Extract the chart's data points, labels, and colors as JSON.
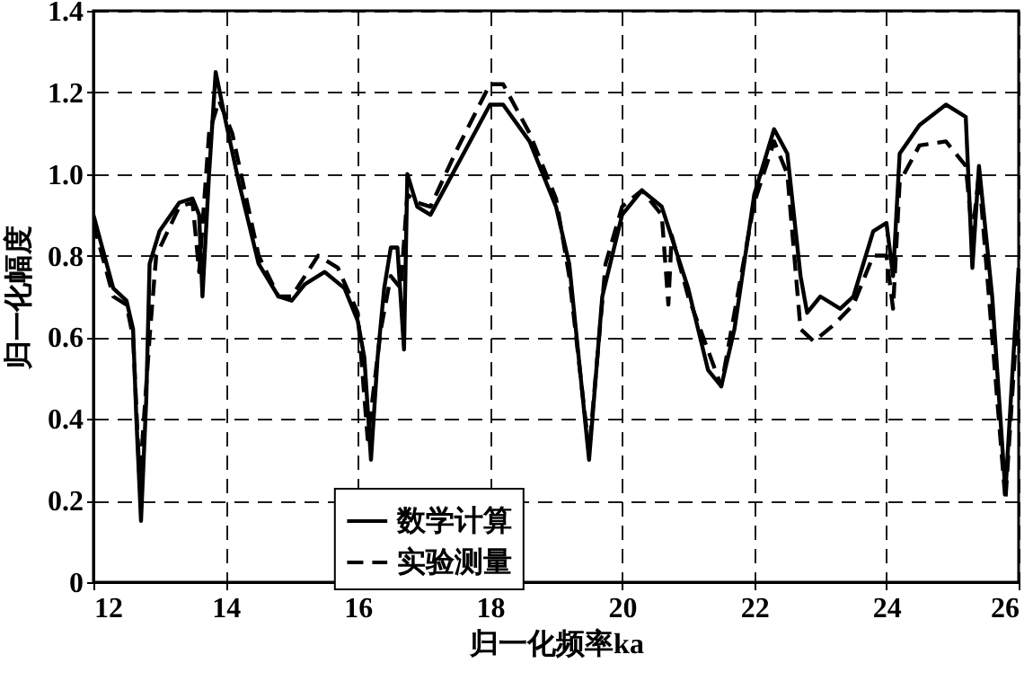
{
  "chart_data": {
    "type": "line",
    "xlabel": "归一化频率ka",
    "ylabel": "归一化幅度",
    "xlim": [
      12,
      26
    ],
    "xticks": [
      12,
      14,
      16,
      18,
      20,
      22,
      24,
      26
    ],
    "ylim": [
      0,
      1.4
    ],
    "yticks": [
      0,
      0.2,
      0.4,
      0.6,
      0.8,
      {
        "value": 1,
        "label": "1.0"
      },
      1.2,
      1.4
    ],
    "grid": true,
    "legend": "bottom",
    "marker": "none",
    "series": [
      {
        "name": "数学计算",
        "color": "#000000",
        "line_style": "solid",
        "x": [
          12.0,
          12.3,
          12.5,
          12.6,
          12.65,
          12.72,
          12.8,
          12.85,
          13.0,
          13.3,
          13.5,
          13.6,
          13.65,
          13.75,
          13.85,
          14.0,
          14.2,
          14.5,
          14.8,
          15.0,
          15.2,
          15.5,
          15.8,
          16.0,
          16.1,
          16.2,
          16.3,
          16.4,
          16.5,
          16.6,
          16.7,
          16.75,
          16.9,
          17.1,
          17.5,
          18.0,
          18.2,
          18.6,
          19.0,
          19.2,
          19.5,
          19.7,
          20.0,
          20.3,
          20.6,
          21.0,
          21.3,
          21.5,
          21.7,
          22.0,
          22.3,
          22.5,
          22.7,
          22.8,
          23.0,
          23.3,
          23.5,
          23.8,
          24.0,
          24.1,
          24.2,
          24.5,
          24.9,
          25.2,
          25.3,
          25.4,
          25.6,
          25.8,
          26.0
        ],
        "values": [
          0.9,
          0.72,
          0.69,
          0.62,
          0.4,
          0.15,
          0.45,
          0.78,
          0.86,
          0.93,
          0.94,
          0.9,
          0.7,
          1.0,
          1.25,
          1.13,
          0.98,
          0.78,
          0.7,
          0.69,
          0.73,
          0.76,
          0.72,
          0.64,
          0.55,
          0.3,
          0.55,
          0.72,
          0.82,
          0.82,
          0.57,
          1.0,
          0.92,
          0.9,
          1.02,
          1.17,
          1.17,
          1.08,
          0.92,
          0.78,
          0.3,
          0.7,
          0.9,
          0.96,
          0.92,
          0.72,
          0.52,
          0.48,
          0.62,
          0.95,
          1.11,
          1.05,
          0.75,
          0.66,
          0.7,
          0.67,
          0.7,
          0.86,
          0.88,
          0.75,
          1.05,
          1.12,
          1.17,
          1.14,
          0.77,
          1.02,
          0.7,
          0.22,
          0.77
        ]
      },
      {
        "name": "实验测量",
        "color": "#000000",
        "line_style": "dashed",
        "x": [
          12.0,
          12.3,
          12.5,
          12.6,
          12.7,
          12.85,
          12.95,
          13.3,
          13.5,
          13.6,
          13.75,
          13.9,
          14.1,
          14.5,
          14.8,
          15.0,
          15.4,
          15.7,
          16.0,
          16.15,
          16.35,
          16.5,
          16.65,
          16.75,
          16.9,
          17.1,
          17.5,
          18.0,
          18.2,
          18.6,
          19.0,
          19.2,
          19.5,
          19.75,
          20.0,
          20.3,
          20.6,
          20.7,
          20.75,
          21.0,
          21.5,
          22.0,
          22.3,
          22.5,
          22.7,
          22.9,
          23.2,
          23.5,
          23.8,
          24.0,
          24.1,
          24.2,
          24.5,
          24.9,
          25.2,
          25.3,
          25.4,
          25.6,
          25.8,
          26.0
        ],
        "values": [
          0.88,
          0.7,
          0.68,
          0.6,
          0.25,
          0.6,
          0.8,
          0.92,
          0.93,
          0.76,
          1.1,
          1.18,
          1.1,
          0.8,
          0.7,
          0.7,
          0.8,
          0.77,
          0.66,
          0.35,
          0.62,
          0.75,
          0.72,
          0.95,
          0.93,
          0.92,
          1.06,
          1.22,
          1.22,
          1.1,
          0.94,
          0.75,
          0.32,
          0.78,
          0.92,
          0.96,
          0.9,
          0.68,
          0.85,
          0.7,
          0.48,
          0.93,
          1.08,
          1.0,
          0.62,
          0.59,
          0.63,
          0.68,
          0.8,
          0.8,
          0.67,
          0.98,
          1.07,
          1.08,
          1.02,
          0.85,
          1.0,
          0.6,
          0.2,
          0.7
        ]
      }
    ]
  }
}
